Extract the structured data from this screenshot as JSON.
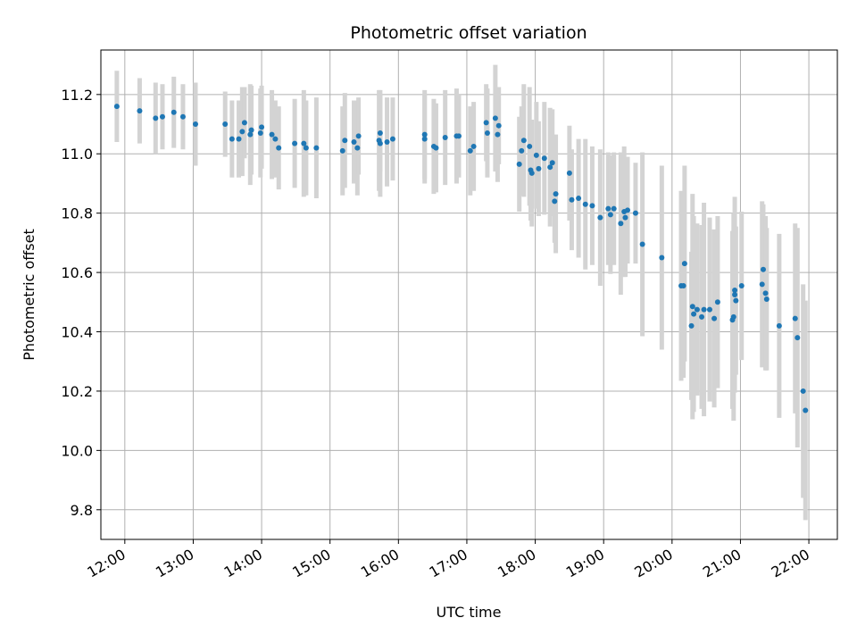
{
  "chart_data": {
    "type": "scatter",
    "title": "Photometric offset variation",
    "xlabel": "UTC time",
    "ylabel": "Photometric offset",
    "xlim": [
      "11:39",
      "22:25"
    ],
    "ylim": [
      9.7,
      11.35
    ],
    "grid": true,
    "x_ticks": [
      "12:00",
      "13:00",
      "14:00",
      "15:00",
      "16:00",
      "17:00",
      "18:00",
      "19:00",
      "20:00",
      "21:00",
      "22:00"
    ],
    "y_ticks": [
      9.8,
      10.0,
      10.2,
      10.4,
      10.6,
      10.8,
      11.0,
      11.2
    ],
    "colors": {
      "point": "#1f77b4",
      "errorbar": "#d3d3d3",
      "grid": "#b0b0b0"
    },
    "series": [
      {
        "points": [
          {
            "x": "11:53",
            "y": 11.16,
            "err": 0.12
          },
          {
            "x": "12:13",
            "y": 11.145,
            "err": 0.11
          },
          {
            "x": "12:27",
            "y": 11.12,
            "err": 0.12
          },
          {
            "x": "12:33",
            "y": 11.125,
            "err": 0.11
          },
          {
            "x": "12:43",
            "y": 11.14,
            "err": 0.12
          },
          {
            "x": "12:51",
            "y": 11.125,
            "err": 0.11
          },
          {
            "x": "13:02",
            "y": 11.1,
            "err": 0.14
          },
          {
            "x": "13:28",
            "y": 11.1,
            "err": 0.11
          },
          {
            "x": "13:34",
            "y": 11.05,
            "err": 0.13
          },
          {
            "x": "13:40",
            "y": 11.05,
            "err": 0.13
          },
          {
            "x": "13:43",
            "y": 11.075,
            "err": 0.15
          },
          {
            "x": "13:45",
            "y": 11.105,
            "err": 0.12
          },
          {
            "x": "13:50",
            "y": 11.065,
            "err": 0.17
          },
          {
            "x": "13:51",
            "y": 11.08,
            "err": 0.15
          },
          {
            "x": "13:59",
            "y": 11.07,
            "err": 0.15
          },
          {
            "x": "14:00",
            "y": 11.09,
            "err": 0.14
          },
          {
            "x": "14:09",
            "y": 11.065,
            "err": 0.15
          },
          {
            "x": "14:12",
            "y": 11.05,
            "err": 0.13
          },
          {
            "x": "14:15",
            "y": 11.02,
            "err": 0.14
          },
          {
            "x": "14:29",
            "y": 11.035,
            "err": 0.15
          },
          {
            "x": "14:37",
            "y": 11.035,
            "err": 0.18
          },
          {
            "x": "14:39",
            "y": 11.02,
            "err": 0.16
          },
          {
            "x": "14:48",
            "y": 11.02,
            "err": 0.17
          },
          {
            "x": "15:11",
            "y": 11.01,
            "err": 0.15
          },
          {
            "x": "15:13",
            "y": 11.045,
            "err": 0.16
          },
          {
            "x": "15:21",
            "y": 11.04,
            "err": 0.14
          },
          {
            "x": "15:24",
            "y": 11.02,
            "err": 0.16
          },
          {
            "x": "15:25",
            "y": 11.06,
            "err": 0.13
          },
          {
            "x": "15:43",
            "y": 11.045,
            "err": 0.17
          },
          {
            "x": "15:44",
            "y": 11.07,
            "err": 0.13
          },
          {
            "x": "15:44",
            "y": 11.035,
            "err": 0.18
          },
          {
            "x": "15:50",
            "y": 11.04,
            "err": 0.15
          },
          {
            "x": "15:55",
            "y": 11.05,
            "err": 0.14
          },
          {
            "x": "16:23",
            "y": 11.065,
            "err": 0.15
          },
          {
            "x": "16:23",
            "y": 11.05,
            "err": 0.15
          },
          {
            "x": "16:31",
            "y": 11.025,
            "err": 0.16
          },
          {
            "x": "16:33",
            "y": 11.02,
            "err": 0.15
          },
          {
            "x": "16:41",
            "y": 11.055,
            "err": 0.16
          },
          {
            "x": "16:51",
            "y": 11.06,
            "err": 0.16
          },
          {
            "x": "16:53",
            "y": 11.06,
            "err": 0.14
          },
          {
            "x": "17:03",
            "y": 11.01,
            "err": 0.15
          },
          {
            "x": "17:06",
            "y": 11.025,
            "err": 0.15
          },
          {
            "x": "17:17",
            "y": 11.105,
            "err": 0.13
          },
          {
            "x": "17:18",
            "y": 11.07,
            "err": 0.15
          },
          {
            "x": "17:25",
            "y": 11.12,
            "err": 0.18
          },
          {
            "x": "17:27",
            "y": 11.065,
            "err": 0.16
          },
          {
            "x": "17:28",
            "y": 11.095,
            "err": 0.13
          },
          {
            "x": "17:46",
            "y": 10.965,
            "err": 0.16
          },
          {
            "x": "17:48",
            "y": 11.01,
            "err": 0.15
          },
          {
            "x": "17:50",
            "y": 11.045,
            "err": 0.19
          },
          {
            "x": "17:55",
            "y": 11.025,
            "err": 0.2
          },
          {
            "x": "17:56",
            "y": 10.945,
            "err": 0.17
          },
          {
            "x": "17:57",
            "y": 10.935,
            "err": 0.18
          },
          {
            "x": "18:01",
            "y": 10.995,
            "err": 0.18
          },
          {
            "x": "18:03",
            "y": 10.95,
            "err": 0.16
          },
          {
            "x": "18:08",
            "y": 10.985,
            "err": 0.19
          },
          {
            "x": "18:13",
            "y": 10.955,
            "err": 0.2
          },
          {
            "x": "18:15",
            "y": 10.97,
            "err": 0.18
          },
          {
            "x": "18:17",
            "y": 10.84,
            "err": 0.14
          },
          {
            "x": "18:18",
            "y": 10.865,
            "err": 0.2
          },
          {
            "x": "18:30",
            "y": 10.935,
            "err": 0.16
          },
          {
            "x": "18:32",
            "y": 10.845,
            "err": 0.17
          },
          {
            "x": "18:38",
            "y": 10.85,
            "err": 0.2
          },
          {
            "x": "18:44",
            "y": 10.83,
            "err": 0.22
          },
          {
            "x": "18:50",
            "y": 10.825,
            "err": 0.2
          },
          {
            "x": "18:57",
            "y": 10.785,
            "err": 0.23
          },
          {
            "x": "19:04",
            "y": 10.815,
            "err": 0.19
          },
          {
            "x": "19:06",
            "y": 10.795,
            "err": 0.2
          },
          {
            "x": "19:09",
            "y": 10.815,
            "err": 0.19
          },
          {
            "x": "19:15",
            "y": 10.765,
            "err": 0.24
          },
          {
            "x": "19:18",
            "y": 10.805,
            "err": 0.22
          },
          {
            "x": "19:19",
            "y": 10.785,
            "err": 0.2
          },
          {
            "x": "19:21",
            "y": 10.81,
            "err": 0.18
          },
          {
            "x": "19:28",
            "y": 10.8,
            "err": 0.17
          },
          {
            "x": "19:34",
            "y": 10.695,
            "err": 0.31
          },
          {
            "x": "19:51",
            "y": 10.65,
            "err": 0.31
          },
          {
            "x": "20:08",
            "y": 10.555,
            "err": 0.32
          },
          {
            "x": "20:10",
            "y": 10.555,
            "err": 0.31
          },
          {
            "x": "20:11",
            "y": 10.63,
            "err": 0.33
          },
          {
            "x": "20:17",
            "y": 10.42,
            "err": 0.25
          },
          {
            "x": "20:18",
            "y": 10.485,
            "err": 0.38
          },
          {
            "x": "20:19",
            "y": 10.46,
            "err": 0.33
          },
          {
            "x": "20:22",
            "y": 10.475,
            "err": 0.29
          },
          {
            "x": "20:26",
            "y": 10.45,
            "err": 0.31
          },
          {
            "x": "20:28",
            "y": 10.475,
            "err": 0.36
          },
          {
            "x": "20:33",
            "y": 10.475,
            "err": 0.31
          },
          {
            "x": "20:37",
            "y": 10.445,
            "err": 0.3
          },
          {
            "x": "20:40",
            "y": 10.5,
            "err": 0.29
          },
          {
            "x": "20:53",
            "y": 10.44,
            "err": 0.3
          },
          {
            "x": "20:54",
            "y": 10.45,
            "err": 0.35
          },
          {
            "x": "20:55",
            "y": 10.525,
            "err": 0.33
          },
          {
            "x": "20:55",
            "y": 10.54,
            "err": 0.25
          },
          {
            "x": "20:56",
            "y": 10.505,
            "err": 0.25
          },
          {
            "x": "21:01",
            "y": 10.555,
            "err": 0.25
          },
          {
            "x": "21:19",
            "y": 10.56,
            "err": 0.28
          },
          {
            "x": "21:20",
            "y": 10.61,
            "err": 0.22
          },
          {
            "x": "21:22",
            "y": 10.53,
            "err": 0.26
          },
          {
            "x": "21:23",
            "y": 10.51,
            "err": 0.24
          },
          {
            "x": "21:34",
            "y": 10.42,
            "err": 0.31
          },
          {
            "x": "21:48",
            "y": 10.445,
            "err": 0.32
          },
          {
            "x": "21:50",
            "y": 10.38,
            "err": 0.37
          },
          {
            "x": "21:55",
            "y": 10.2,
            "err": 0.36
          },
          {
            "x": "21:57",
            "y": 10.135,
            "err": 0.37
          }
        ]
      }
    ]
  }
}
